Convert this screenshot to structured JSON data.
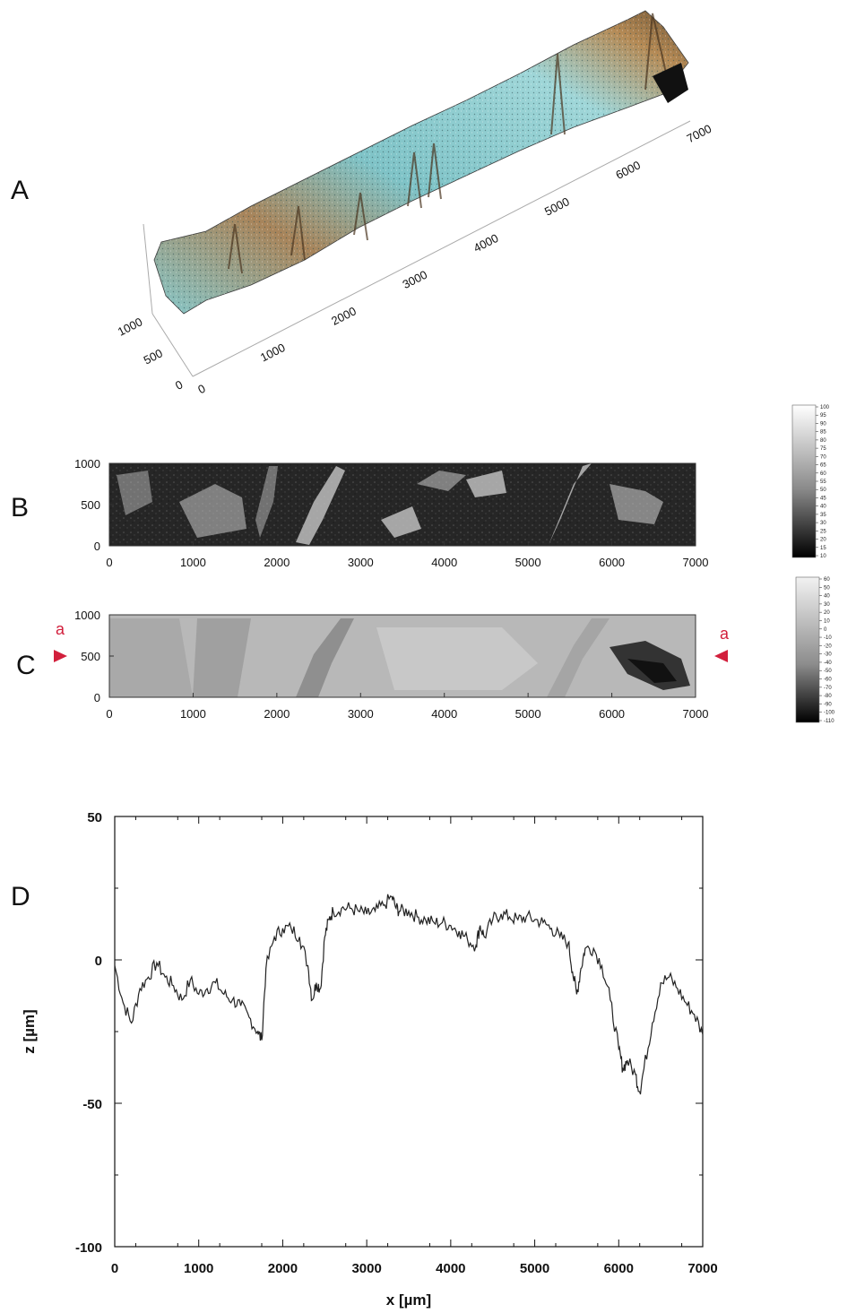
{
  "panels": {
    "a": "A",
    "b": "B",
    "c": "C",
    "d": "D"
  },
  "colors": {
    "marker": "#d21f3c",
    "line": "#222222",
    "cyan": "#8fd0d4",
    "brown": "#a0784a"
  },
  "chart_data": [
    {
      "panel": "A",
      "type": "surface",
      "x_ticks": [
        "0",
        "1000",
        "2000",
        "3000",
        "4000",
        "5000",
        "6000",
        "7000"
      ],
      "y_ticks": [
        "0",
        "500",
        "1000"
      ]
    },
    {
      "panel": "B",
      "type": "heatmap",
      "xlim": [
        0,
        7000
      ],
      "ylim": [
        0,
        1000
      ],
      "x_ticks": [
        "0",
        "1000",
        "2000",
        "3000",
        "4000",
        "5000",
        "6000",
        "7000"
      ],
      "y_ticks": [
        "0",
        "500",
        "1000"
      ],
      "colorbar_ticks": [
        "100",
        "95",
        "90",
        "85",
        "80",
        "75",
        "70",
        "65",
        "60",
        "55",
        "50",
        "45",
        "40",
        "35",
        "30",
        "25",
        "20",
        "15",
        "10"
      ]
    },
    {
      "panel": "C",
      "type": "heatmap",
      "xlim": [
        0,
        7000
      ],
      "ylim": [
        0,
        1000
      ],
      "x_ticks": [
        "0",
        "1000",
        "2000",
        "3000",
        "4000",
        "5000",
        "6000",
        "7000"
      ],
      "y_ticks": [
        "0",
        "500",
        "1000"
      ],
      "profile_marker": "a",
      "profile_y": 500,
      "colorbar_ticks": [
        "60",
        "50",
        "40",
        "30",
        "20",
        "10",
        "0",
        "-10",
        "-20",
        "-30",
        "-40",
        "-50",
        "-60",
        "-70",
        "-80",
        "-90",
        "-100",
        "-110"
      ]
    },
    {
      "panel": "D",
      "type": "line",
      "xlabel": "x [µm]",
      "ylabel": "z [µm]",
      "xlim": [
        0,
        7000
      ],
      "ylim": [
        -100,
        50
      ],
      "x_ticks": [
        "0",
        "1000",
        "2000",
        "3000",
        "4000",
        "5000",
        "6000",
        "7000"
      ],
      "y_ticks": [
        "50",
        "0",
        "-50",
        "-100"
      ],
      "grid": false,
      "x": [
        0,
        100,
        200,
        300,
        400,
        500,
        600,
        700,
        800,
        900,
        1000,
        1100,
        1200,
        1300,
        1400,
        1500,
        1600,
        1700,
        1750,
        1800,
        1900,
        2000,
        2100,
        2200,
        2300,
        2350,
        2400,
        2450,
        2500,
        2550,
        2600,
        2700,
        2800,
        2900,
        3000,
        3100,
        3200,
        3300,
        3350,
        3400,
        3500,
        3600,
        3700,
        3800,
        3900,
        4000,
        4100,
        4200,
        4300,
        4350,
        4400,
        4500,
        4600,
        4700,
        4800,
        4900,
        5000,
        5100,
        5200,
        5300,
        5400,
        5450,
        5500,
        5550,
        5600,
        5700,
        5800,
        5900,
        6000,
        6050,
        6100,
        6200,
        6250,
        6300,
        6400,
        6500,
        6600,
        6700,
        6800,
        6900,
        7000
      ],
      "y": [
        -2,
        -15,
        -22,
        -10,
        -6,
        -1,
        -6,
        -9,
        -14,
        -7,
        -12,
        -10,
        -8,
        -12,
        -14,
        -16,
        -20,
        -25,
        -28,
        -3,
        8,
        11,
        11,
        8,
        -2,
        -14,
        -8,
        -10,
        8,
        14,
        17,
        18,
        18,
        17,
        16,
        17,
        19,
        22,
        18,
        17,
        17,
        15,
        14,
        13,
        13,
        12,
        10,
        7,
        5,
        12,
        8,
        14,
        16,
        15,
        14,
        15,
        14,
        13,
        11,
        8,
        6,
        -4,
        -12,
        -3,
        4,
        4,
        -2,
        -14,
        -31,
        -38,
        -35,
        -40,
        -46,
        -38,
        -22,
        -8,
        -6,
        -10,
        -15,
        -19,
        -26
      ]
    }
  ]
}
